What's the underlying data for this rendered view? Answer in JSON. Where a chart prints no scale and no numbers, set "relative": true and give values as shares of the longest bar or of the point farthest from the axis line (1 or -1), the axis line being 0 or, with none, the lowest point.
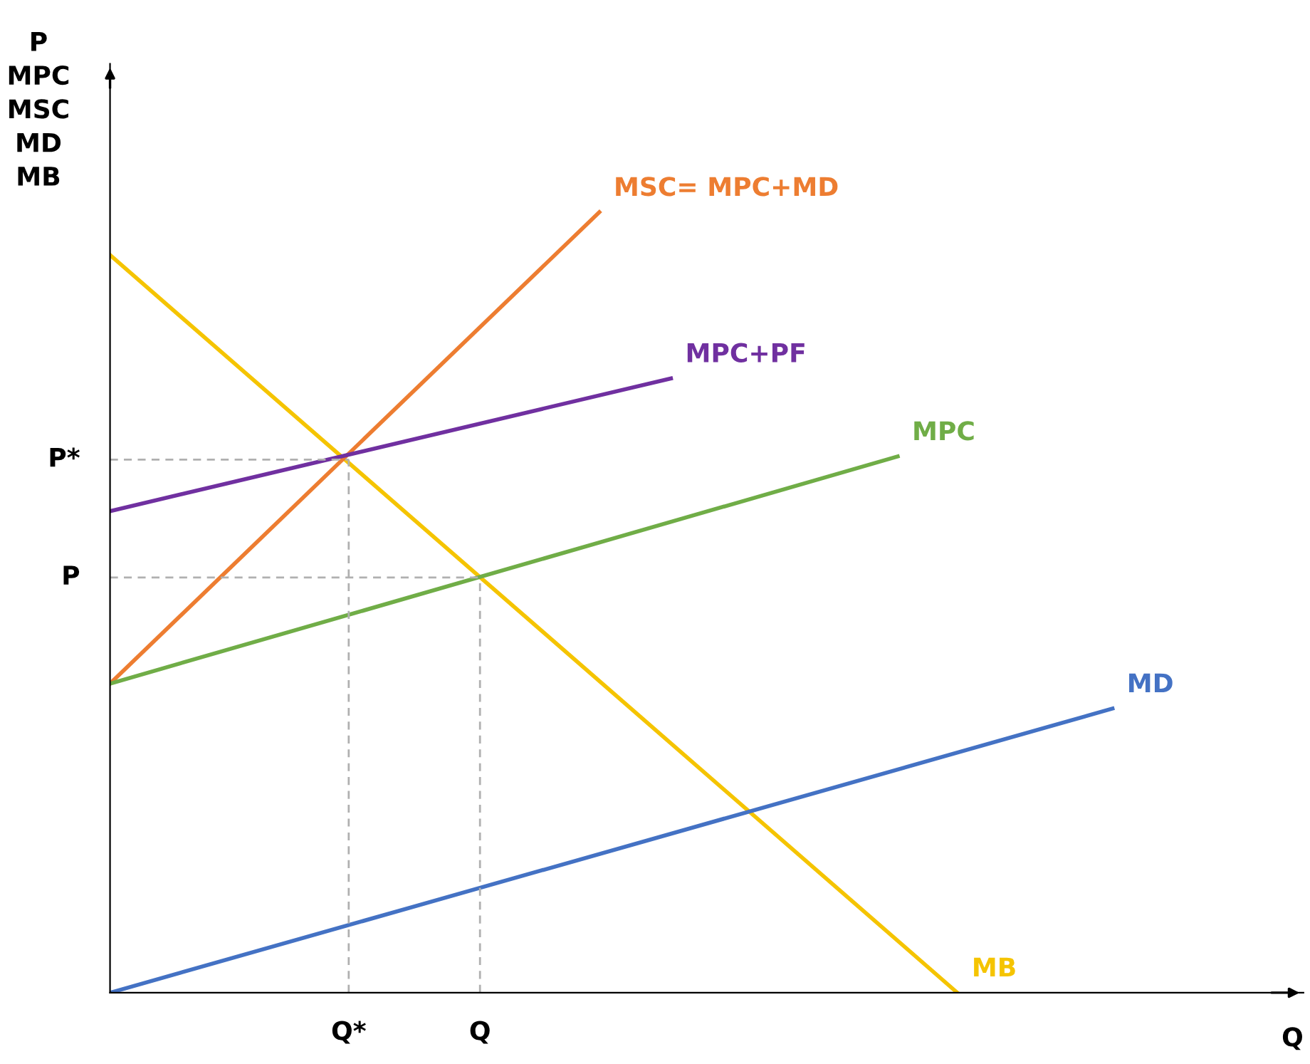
{
  "chart_data": {
    "type": "line",
    "relative": true,
    "ylabel": "P\nMPC\nMSC\nMD\nMB",
    "xlabel": "Q",
    "categories": [
      null,
      null,
      null,
      null,
      null,
      null,
      null,
      null,
      null,
      null,
      null,
      null,
      null,
      null,
      null,
      null,
      null,
      null,
      null,
      null,
      "Q*",
      null,
      null,
      null,
      null,
      null,
      null,
      null,
      null,
      null,
      null,
      "Q",
      null,
      null,
      null,
      null,
      null,
      null,
      null,
      null,
      null,
      null,
      null,
      null,
      null,
      null,
      null,
      null,
      null,
      null,
      null,
      null,
      null,
      null,
      null,
      null,
      null,
      null,
      null,
      null,
      null,
      null,
      null,
      null,
      null,
      null,
      null,
      null,
      null,
      null,
      null,
      null,
      null,
      null,
      null,
      null,
      null,
      null,
      null,
      null,
      null,
      null,
      null,
      null,
      null,
      null,
      null,
      null,
      null,
      null,
      null,
      null,
      null,
      null,
      null,
      null,
      null,
      null,
      null,
      null,
      null
    ],
    "annotations": [
      {
        "text": "P*",
        "x": "Q*",
        "y": 0.683
      },
      {
        "text": "P",
        "x": "Q",
        "y": 0.532
      }
    ],
    "grid": false,
    "legend": false,
    "marker": "none",
    "series": [
      {
        "name": "MB",
        "color": "#f5c400",
        "values": [
          0.945,
          null,
          null,
          null,
          null,
          null,
          null,
          null,
          null,
          null,
          null,
          null,
          null,
          null,
          null,
          null,
          null,
          null,
          null,
          null,
          null,
          null,
          null,
          null,
          null,
          null,
          null,
          null,
          null,
          null,
          null,
          null,
          null,
          null,
          null,
          null,
          null,
          null,
          null,
          null,
          null,
          null,
          null,
          null,
          null,
          null,
          null,
          null,
          null,
          null,
          null,
          null,
          null,
          null,
          null,
          null,
          null,
          null,
          null,
          null,
          null,
          null,
          null,
          null,
          null,
          null,
          null,
          null,
          null,
          null,
          null,
          0,
          null,
          null,
          null,
          null,
          null,
          null,
          null,
          null,
          null,
          null,
          null,
          null,
          null,
          null,
          null,
          null,
          null,
          null,
          null,
          null,
          null,
          null,
          null,
          null,
          null,
          null,
          null,
          null,
          null
        ]
      },
      {
        "name": "MSC= MPC+MD",
        "color": "#ed7d31",
        "values": [
          0.396,
          null,
          null,
          null,
          null,
          null,
          null,
          null,
          null,
          null,
          null,
          null,
          null,
          null,
          null,
          null,
          null,
          null,
          null,
          null,
          null,
          null,
          null,
          null,
          null,
          null,
          null,
          null,
          null,
          null,
          null,
          null,
          null,
          null,
          null,
          null,
          null,
          null,
          null,
          null,
          null,
          1,
          null,
          null,
          null,
          null,
          null,
          null,
          null,
          null,
          null,
          null,
          null,
          null,
          null,
          null,
          null,
          null,
          null,
          null,
          null,
          null,
          null,
          null,
          null,
          null,
          null,
          null,
          null,
          null,
          null,
          null,
          null,
          null,
          null,
          null,
          null,
          null,
          null,
          null,
          null,
          null,
          null,
          null,
          null,
          null,
          null,
          null,
          null,
          null,
          null,
          null,
          null,
          null,
          null,
          null,
          null,
          null,
          null,
          null,
          null
        ]
      },
      {
        "name": "MPC+PF",
        "color": "#7030a0",
        "values": [
          0.617,
          null,
          null,
          null,
          null,
          null,
          null,
          null,
          null,
          null,
          null,
          null,
          null,
          null,
          null,
          null,
          null,
          null,
          null,
          null,
          null,
          null,
          null,
          null,
          null,
          null,
          null,
          null,
          null,
          null,
          null,
          null,
          null,
          null,
          null,
          null,
          null,
          null,
          null,
          null,
          null,
          null,
          null,
          null,
          null,
          null,
          null,
          0.787,
          null,
          null,
          null,
          null,
          null,
          null,
          null,
          null,
          null,
          null,
          null,
          null,
          null,
          null,
          null,
          null,
          null,
          null,
          null,
          null,
          null,
          null,
          null,
          null,
          null,
          null,
          null,
          null,
          null,
          null,
          null,
          null,
          null,
          null,
          null,
          null,
          null,
          null,
          null,
          null,
          null,
          null,
          null,
          null,
          null,
          null,
          null,
          null,
          null,
          null,
          null,
          null,
          null
        ]
      },
      {
        "name": "MPC",
        "color": "#70ad47",
        "values": [
          0.396,
          null,
          null,
          null,
          null,
          null,
          null,
          null,
          null,
          null,
          null,
          null,
          null,
          null,
          null,
          null,
          null,
          null,
          null,
          null,
          null,
          null,
          null,
          null,
          null,
          null,
          null,
          null,
          null,
          null,
          null,
          null,
          null,
          null,
          null,
          null,
          null,
          null,
          null,
          null,
          null,
          null,
          null,
          null,
          null,
          null,
          null,
          null,
          null,
          null,
          null,
          null,
          null,
          null,
          null,
          null,
          null,
          null,
          null,
          null,
          null,
          null,
          null,
          null,
          null,
          null,
          0.687,
          null,
          null,
          null,
          null,
          null,
          null,
          null,
          null,
          null,
          null,
          null,
          null,
          null,
          null,
          null,
          null,
          null,
          null,
          null,
          null,
          null,
          null,
          null,
          null,
          null,
          null,
          null,
          null,
          null,
          null,
          null,
          null,
          null,
          null
        ]
      },
      {
        "name": "MD",
        "color": "#4472c4",
        "values": [
          0,
          null,
          null,
          null,
          null,
          null,
          null,
          null,
          null,
          null,
          null,
          null,
          null,
          null,
          null,
          null,
          null,
          null,
          null,
          null,
          null,
          null,
          null,
          null,
          null,
          null,
          null,
          null,
          null,
          null,
          null,
          null,
          null,
          null,
          null,
          null,
          null,
          null,
          null,
          null,
          null,
          null,
          null,
          null,
          null,
          null,
          null,
          null,
          null,
          null,
          null,
          null,
          null,
          null,
          null,
          null,
          null,
          null,
          null,
          null,
          null,
          null,
          null,
          null,
          null,
          null,
          null,
          null,
          null,
          null,
          null,
          null,
          null,
          null,
          null,
          null,
          null,
          null,
          null,
          null,
          null,
          null,
          null,
          null,
          0.364,
          null,
          null,
          null,
          null,
          null,
          null,
          null,
          null,
          null,
          null,
          null,
          null,
          null,
          null,
          null,
          null
        ]
      }
    ]
  }
}
